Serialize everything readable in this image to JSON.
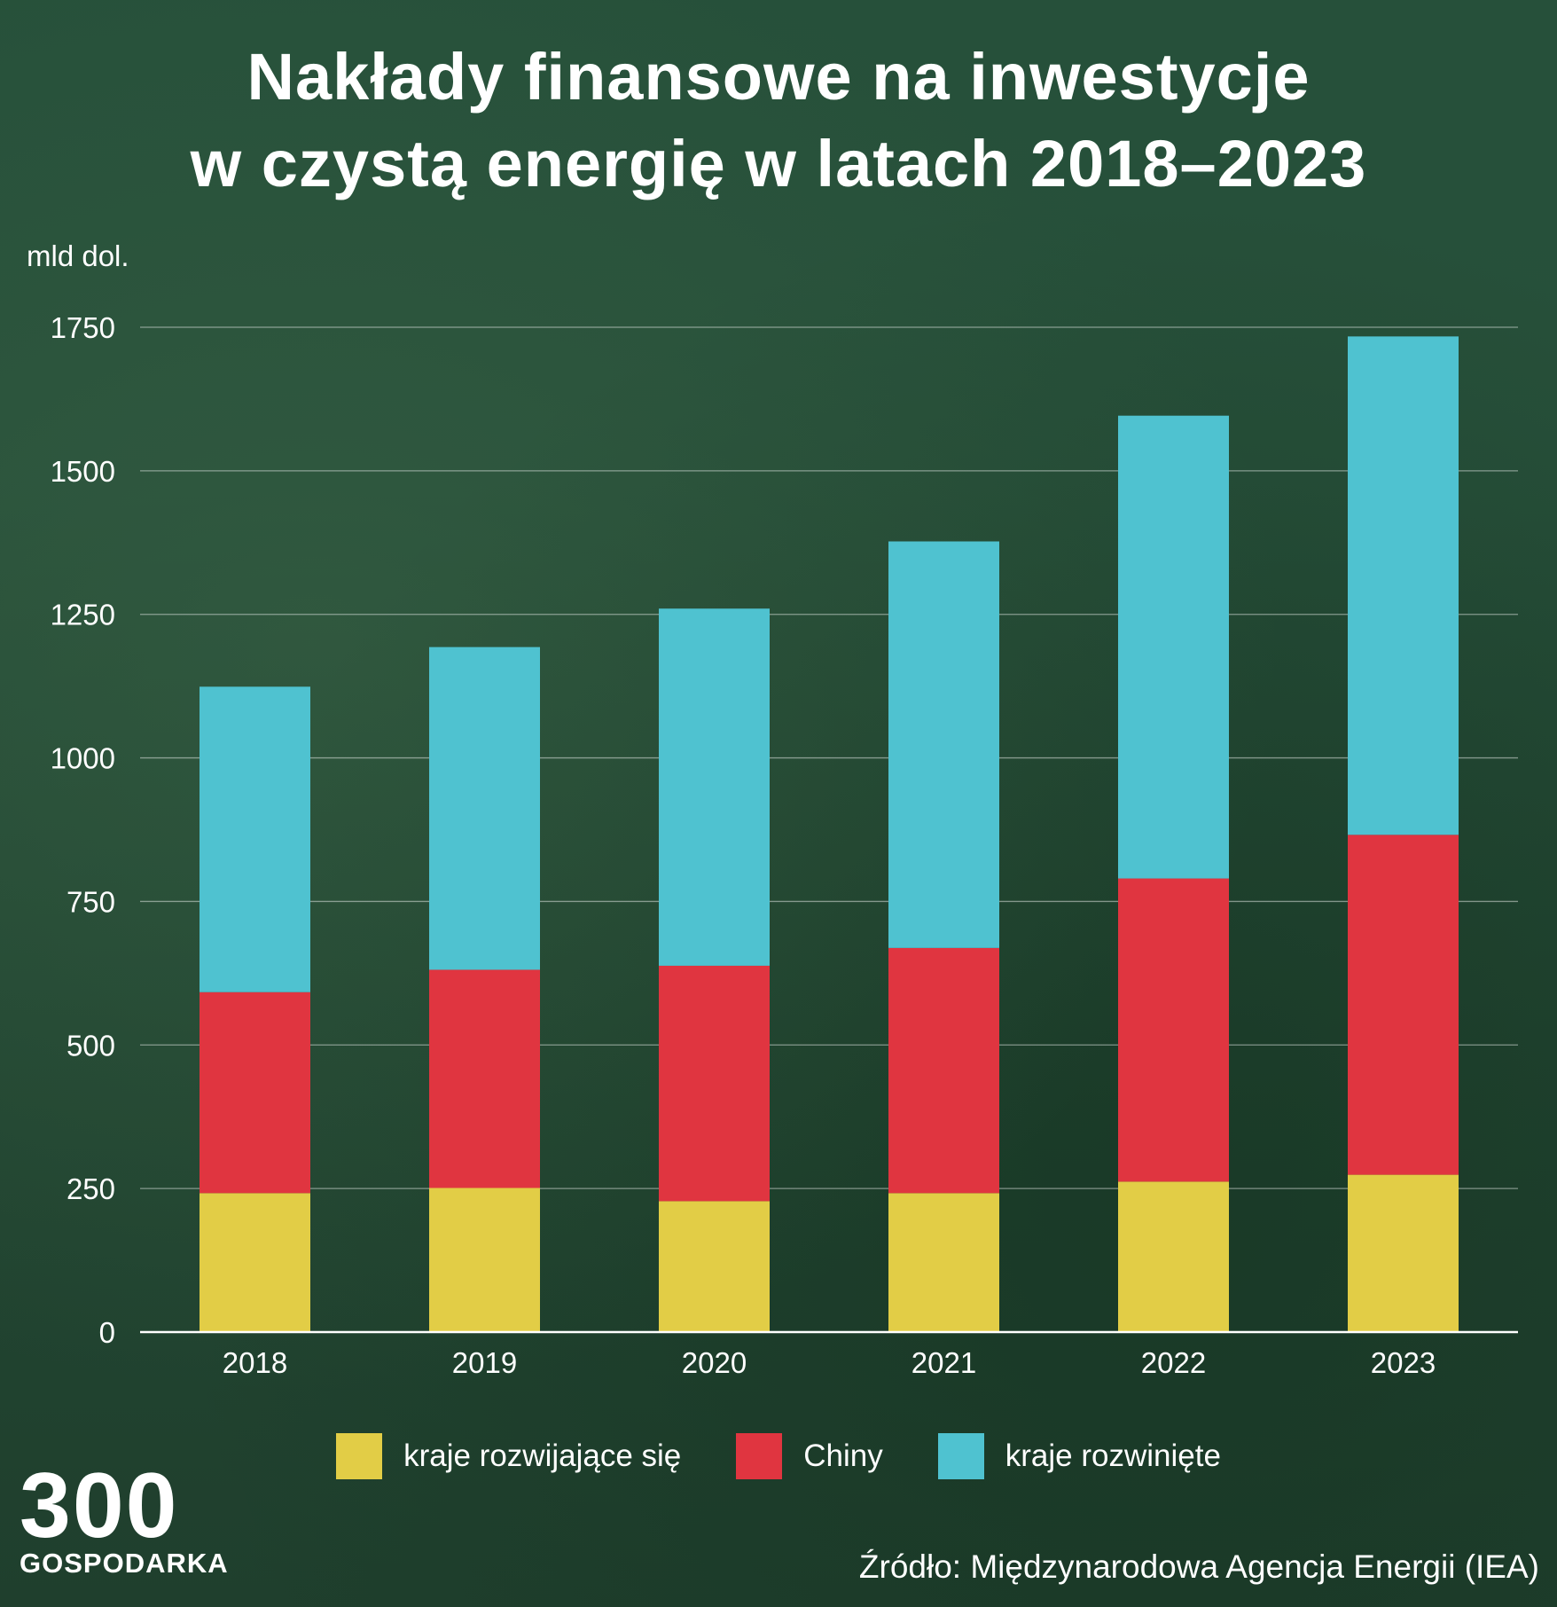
{
  "title": {
    "line1": "Nakłady finansowe na inwestycje",
    "line2": "w czystą energię w latach 2018–2023"
  },
  "unit_label": "mld dol.",
  "legend": [
    {
      "label": "kraje rozwijające się",
      "color": "#e2cd46"
    },
    {
      "label": "Chiny",
      "color": "#e03540"
    },
    {
      "label": "kraje rozwinięte",
      "color": "#4fc2d0"
    }
  ],
  "logo": {
    "number": "300",
    "text": "GOSPODARKA"
  },
  "source": "Źródło: Międzynarodowa Agencja Energii (IEA)",
  "chart_data": {
    "type": "bar",
    "stacked": true,
    "title": "Nakłady finansowe na inwestycje w czystą energię w latach 2018–2023",
    "ylabel": "mld dol.",
    "categories": [
      "2018",
      "2019",
      "2020",
      "2021",
      "2022",
      "2023"
    ],
    "series": [
      {
        "name": "kraje rozwijające się",
        "color": "#e2cd46",
        "values": [
          242,
          251,
          228,
          242,
          262,
          274
        ]
      },
      {
        "name": "Chiny",
        "color": "#e03540",
        "values": [
          350,
          380,
          410,
          427,
          528,
          592
        ]
      },
      {
        "name": "kraje rozwinięte",
        "color": "#4fc2d0",
        "values": [
          532,
          562,
          622,
          708,
          806,
          868
        ]
      }
    ],
    "yticks": [
      0,
      250,
      500,
      750,
      1000,
      1250,
      1500,
      1750
    ],
    "ylim": [
      0,
      1750
    ],
    "grid": true,
    "legend_position": "bottom"
  }
}
